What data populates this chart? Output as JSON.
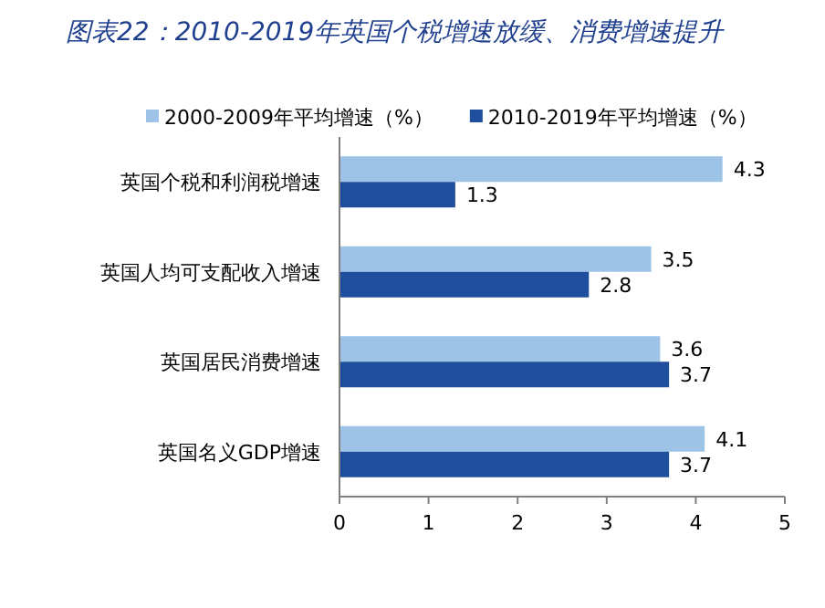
{
  "chart_data": {
    "type": "bar",
    "orientation": "horizontal",
    "title": "图表22：2010-2019年英国个税增速放缓、消费增速提升",
    "categories": [
      "英国个税和利润税增速",
      "英国人均可支配收入增速",
      "英国居民消费增速",
      "英国名义GDP增速"
    ],
    "series": [
      {
        "name": "2000-2009年平均增速（%）",
        "color": "#9dc3e6",
        "values": [
          4.3,
          3.5,
          3.6,
          4.1
        ]
      },
      {
        "name": "2010-2019年平均增速（%）",
        "color": "#1f4e9c",
        "values": [
          1.3,
          2.8,
          3.7,
          3.7
        ]
      }
    ],
    "xlim": [
      0,
      5
    ],
    "xticks": [
      0,
      1,
      2,
      3,
      4,
      5
    ],
    "data_labels": true,
    "legend": "top",
    "grid": false
  }
}
